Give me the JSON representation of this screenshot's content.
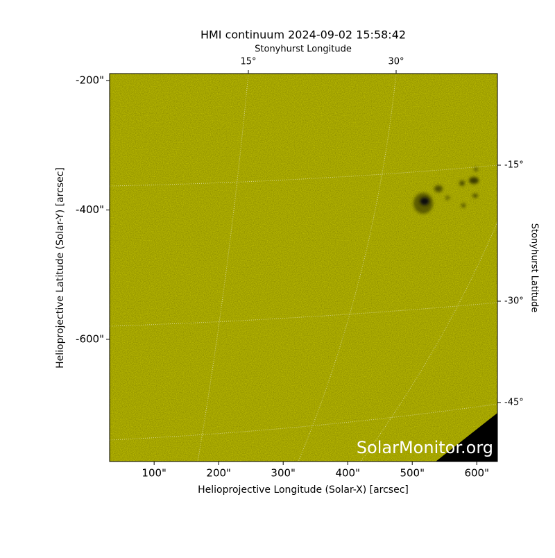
{
  "chart_data": {
    "type": "image",
    "title": "HMI continuum 2024-09-02 15:58:42",
    "xlabel": "Helioprojective Longitude (Solar-X) [arcsec]",
    "ylabel": "Helioprojective Latitude (Solar-Y) [arcsec]",
    "top_label": "Stonyhurst Longitude",
    "right_label": "Stonyhurst Latitude",
    "xlim": [
      31,
      632
    ],
    "ylim": [
      -789,
      -189
    ],
    "xticks": [
      {
        "value": 100,
        "label": "100\""
      },
      {
        "value": 200,
        "label": "200\""
      },
      {
        "value": 300,
        "label": "300\""
      },
      {
        "value": 400,
        "label": "400\""
      },
      {
        "value": 500,
        "label": "500\""
      },
      {
        "value": 600,
        "label": "600\""
      }
    ],
    "yticks": [
      {
        "value": -200,
        "label": "-200\""
      },
      {
        "value": -400,
        "label": "-400\""
      },
      {
        "value": -600,
        "label": "-600\""
      }
    ],
    "top_ticks": [
      {
        "value": 15,
        "label": "15°"
      },
      {
        "value": 30,
        "label": "30°"
      }
    ],
    "right_ticks": [
      {
        "value": -15,
        "label": "-15°"
      },
      {
        "value": -30,
        "label": "-30°"
      },
      {
        "value": -45,
        "label": "-45°"
      }
    ],
    "watermark": "SolarMonitor.org",
    "color": "#c8c800"
  }
}
